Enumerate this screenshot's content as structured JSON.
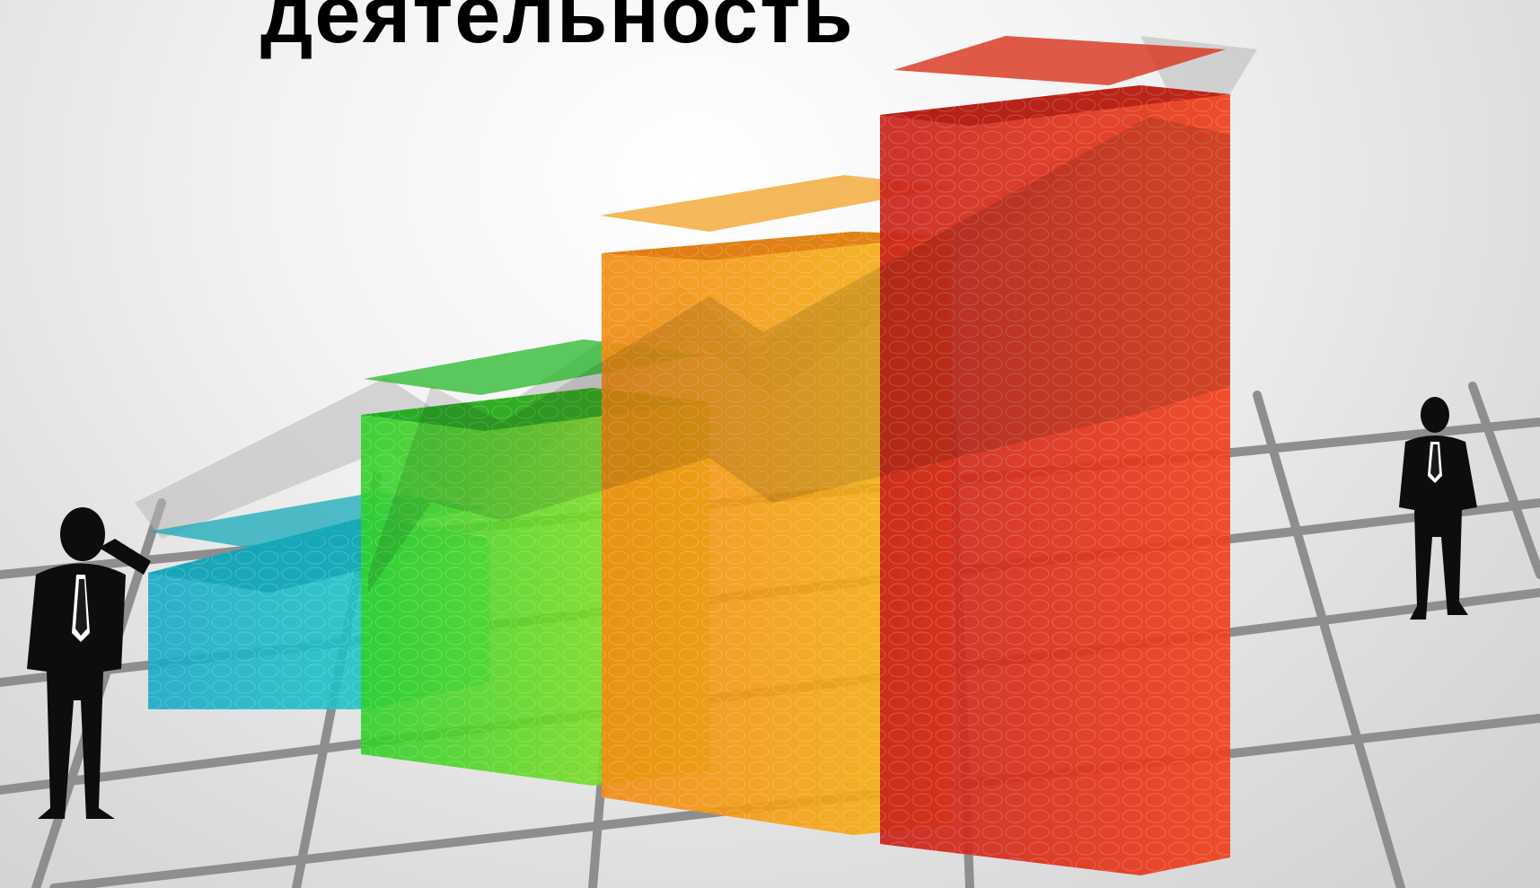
{
  "title": "деятельность",
  "palette": {
    "cyan": "#17b6c9",
    "green": "#3fd82a",
    "orange": "#f39c12",
    "red": "#d8331a",
    "arrow": "#b8b8b8",
    "floor_line": "#8c8c8c",
    "silhouette": "#0d0d0d"
  },
  "icons": {
    "figure_left": "businessman-phone-icon",
    "figure_right": "businessman-walking-icon",
    "growth_arrow": "growth-arrow-icon"
  }
}
